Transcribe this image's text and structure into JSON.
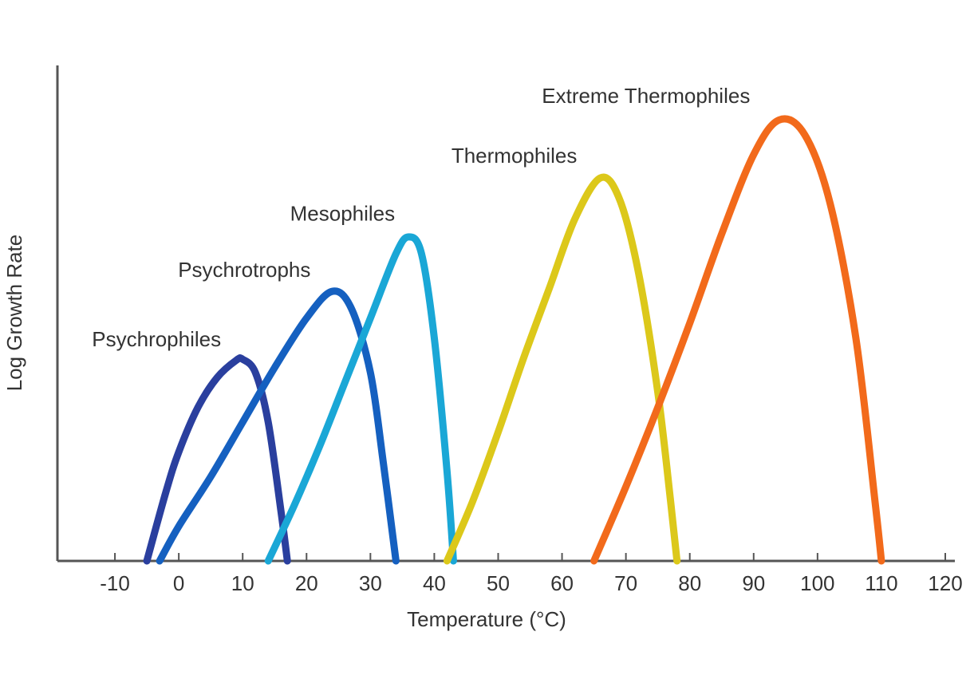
{
  "chart_data": {
    "type": "line",
    "x_label": "Temperature (°C)",
    "y_label": "Log Growth Rate",
    "xlim": [
      -19,
      121.5
    ],
    "ylim": [
      0,
      100
    ],
    "xticks": [
      -10,
      0,
      10,
      20,
      30,
      40,
      50,
      60,
      70,
      80,
      90,
      100,
      110,
      120
    ],
    "series": [
      {
        "name": "Psychrophiles",
        "color": "#2a3f9e",
        "x": [
          -5,
          -2,
          0,
          3,
          6,
          9,
          10,
          12,
          14,
          16,
          17
        ],
        "values": [
          0,
          14,
          22,
          31,
          37,
          40.5,
          40.7,
          38,
          28,
          10,
          0
        ]
      },
      {
        "name": "Psychrotrophs",
        "color": "#1560c0",
        "x": [
          -3,
          0,
          5,
          10,
          15,
          20,
          24,
          27,
          30,
          32,
          34
        ],
        "values": [
          0,
          7,
          17,
          28,
          39,
          49,
          54.4,
          51,
          38,
          20,
          0
        ]
      },
      {
        "name": "Mesophiles",
        "color": "#1aa7d6",
        "x": [
          14,
          18,
          22,
          26,
          30,
          34,
          36,
          38,
          40,
          42,
          43
        ],
        "values": [
          0,
          11,
          23,
          36,
          49,
          62,
          65.4,
          62,
          45,
          18,
          0
        ]
      },
      {
        "name": "Thermophiles",
        "color": "#dcc81a",
        "x": [
          42,
          46,
          50,
          54,
          58,
          62,
          66,
          69,
          72,
          75,
          77,
          78
        ],
        "values": [
          0,
          12,
          26,
          41,
          55,
          69,
          77.3,
          73,
          58,
          34,
          12,
          0
        ]
      },
      {
        "name": "Extreme Thermophiles",
        "color": "#f26a1b",
        "x": [
          65,
          70,
          75,
          80,
          85,
          90,
          94,
          98,
          102,
          106,
          109,
          110
        ],
        "values": [
          0,
          15,
          31,
          48,
          66,
          82,
          89,
          86,
          72,
          45,
          12,
          0
        ]
      }
    ]
  }
}
